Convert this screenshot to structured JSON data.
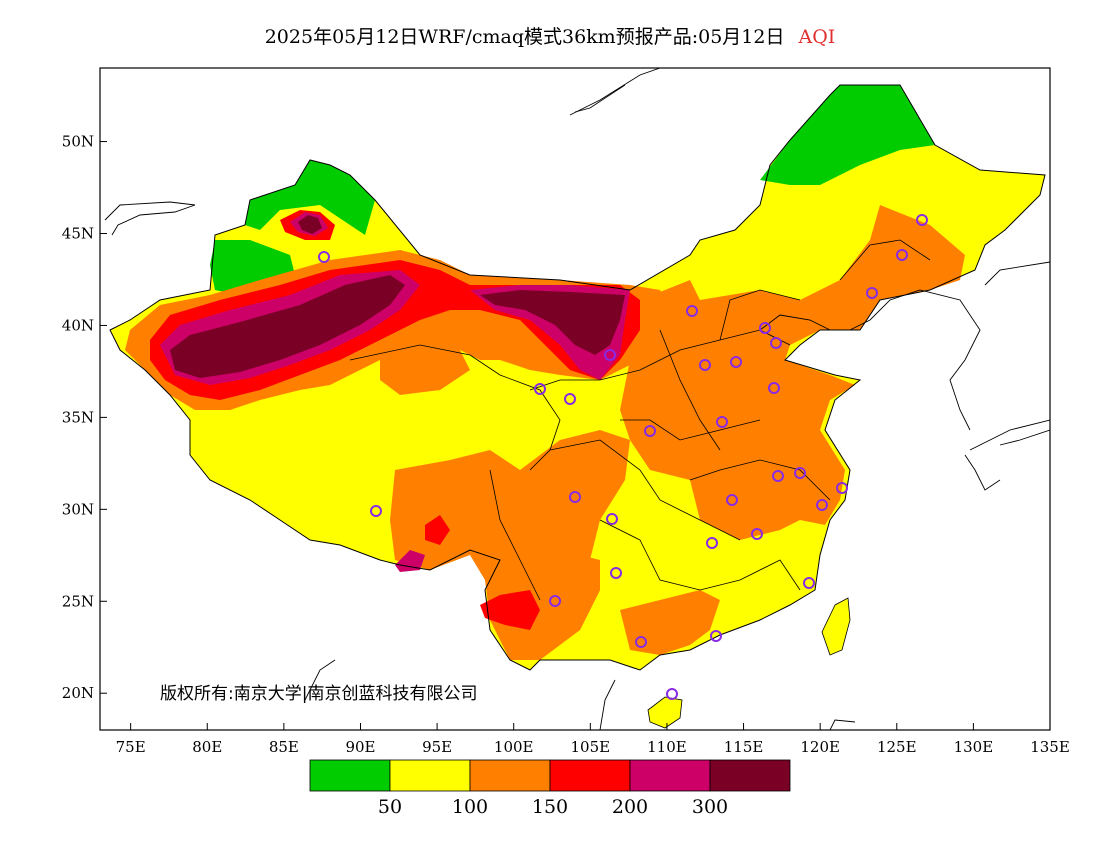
{
  "title": {
    "main": "2025年05月12日WRF/cmaq模式36km预报产品:05月12日",
    "variable": "AQI"
  },
  "map": {
    "lon_range": [
      73,
      135
    ],
    "lat_range": [
      18,
      54
    ],
    "x_ticks": [
      "75E",
      "80E",
      "85E",
      "90E",
      "95E",
      "100E",
      "105E",
      "110E",
      "115E",
      "120E",
      "125E",
      "130E",
      "135E"
    ],
    "x_tick_values": [
      75,
      80,
      85,
      90,
      95,
      100,
      105,
      110,
      115,
      120,
      125,
      130,
      135
    ],
    "y_ticks": [
      "20N",
      "25N",
      "30N",
      "35N",
      "40N",
      "45N",
      "50N"
    ],
    "y_tick_values": [
      20,
      25,
      30,
      35,
      40,
      45,
      50
    ]
  },
  "legend": {
    "colors": [
      "#00cc00",
      "#ffff00",
      "#ff8000",
      "#ff0000",
      "#cc0066",
      "#7a0026"
    ],
    "labels": [
      "50",
      "100",
      "150",
      "200",
      "300"
    ]
  },
  "copyright": "版权所有:南京大学|南京创蓝科技有限公司"
}
